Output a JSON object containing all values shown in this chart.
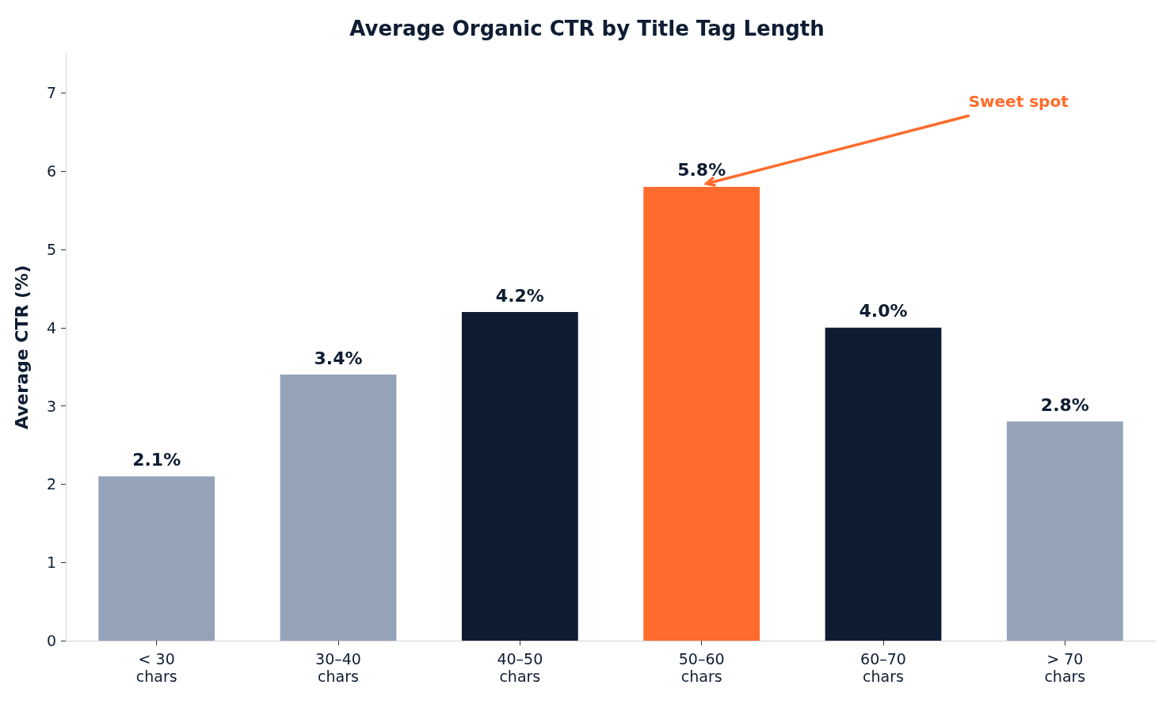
{
  "chart_data": {
    "type": "bar",
    "title": "Average Organic CTR by Title Tag Length",
    "ylabel": "Average CTR (%)",
    "categories": [
      "< 30\nchars",
      "30–40\nchars",
      "40–50\nchars",
      "50–60\nchars",
      "60–70\nchars",
      "> 70\nchars"
    ],
    "values": [
      2.1,
      3.4,
      4.2,
      5.8,
      4.0,
      2.8
    ],
    "value_labels": [
      "2.1%",
      "3.4%",
      "4.2%",
      "5.8%",
      "4.0%",
      "2.8%"
    ],
    "colors": [
      "#94a3b8",
      "#94a3b8",
      "#0f1d33",
      "#ff6b2c",
      "#0f1d33",
      "#94a3b8"
    ],
    "ylim": [
      0,
      7.5
    ],
    "yticks": [
      0,
      1,
      2,
      3,
      4,
      5,
      6,
      7
    ],
    "grid": false,
    "annotations": [
      {
        "text": "Sweet spot",
        "x": "50–60\nchars",
        "y": 5.8
      }
    ]
  }
}
